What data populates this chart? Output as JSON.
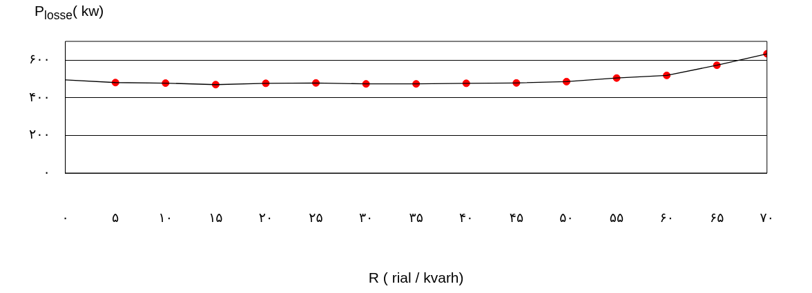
{
  "chart_data": {
    "type": "line",
    "xlabel": "R ( rial / kvarh)",
    "ylabel": "P$_{losse}$( kw)",
    "xlim": [
      0,
      70
    ],
    "xticks": [
      {
        "value": 0,
        "label": "۰"
      },
      {
        "value": 5,
        "label": "۵"
      },
      {
        "value": 10,
        "label": "۱۰"
      },
      {
        "value": 15,
        "label": "۱۵"
      },
      {
        "value": 20,
        "label": "۲۰"
      },
      {
        "value": 25,
        "label": "۲۵"
      },
      {
        "value": 30,
        "label": "۳۰"
      },
      {
        "value": 35,
        "label": "۳۵"
      },
      {
        "value": 40,
        "label": "۴۰"
      },
      {
        "value": 45,
        "label": "۴۵"
      },
      {
        "value": 50,
        "label": "۵۰"
      },
      {
        "value": 55,
        "label": "۵۵"
      },
      {
        "value": 60,
        "label": "۶۰"
      },
      {
        "value": 65,
        "label": "۶۵"
      },
      {
        "value": 70,
        "label": "۷۰"
      }
    ],
    "ylim": [
      0,
      700
    ],
    "yticks": [
      {
        "value": 0,
        "label": "۰"
      },
      {
        "value": 200,
        "label": "۲۰۰"
      },
      {
        "value": 400,
        "label": "۴۰۰"
      },
      {
        "value": 600,
        "label": "۶۰۰"
      }
    ],
    "grid": "y",
    "legend": false,
    "series": [
      {
        "type": "line",
        "color": "#000000",
        "marker": "none",
        "x": [
          0,
          5,
          10,
          15,
          20,
          25,
          30,
          35,
          40,
          45,
          50,
          55,
          60,
          65,
          70
        ],
        "values": [
          495,
          481,
          478,
          470,
          477,
          479,
          474,
          474,
          477,
          479,
          486,
          505,
          519,
          573,
          634
        ]
      },
      {
        "type": "scatter",
        "color": "#ff0000",
        "marker": "circle",
        "x": [
          5,
          10,
          15,
          20,
          25,
          30,
          35,
          40,
          45,
          50,
          55,
          60,
          65,
          70
        ],
        "values": [
          481,
          478,
          470,
          477,
          479,
          474,
          474,
          477,
          479,
          486,
          505,
          519,
          573,
          634
        ]
      }
    ]
  }
}
